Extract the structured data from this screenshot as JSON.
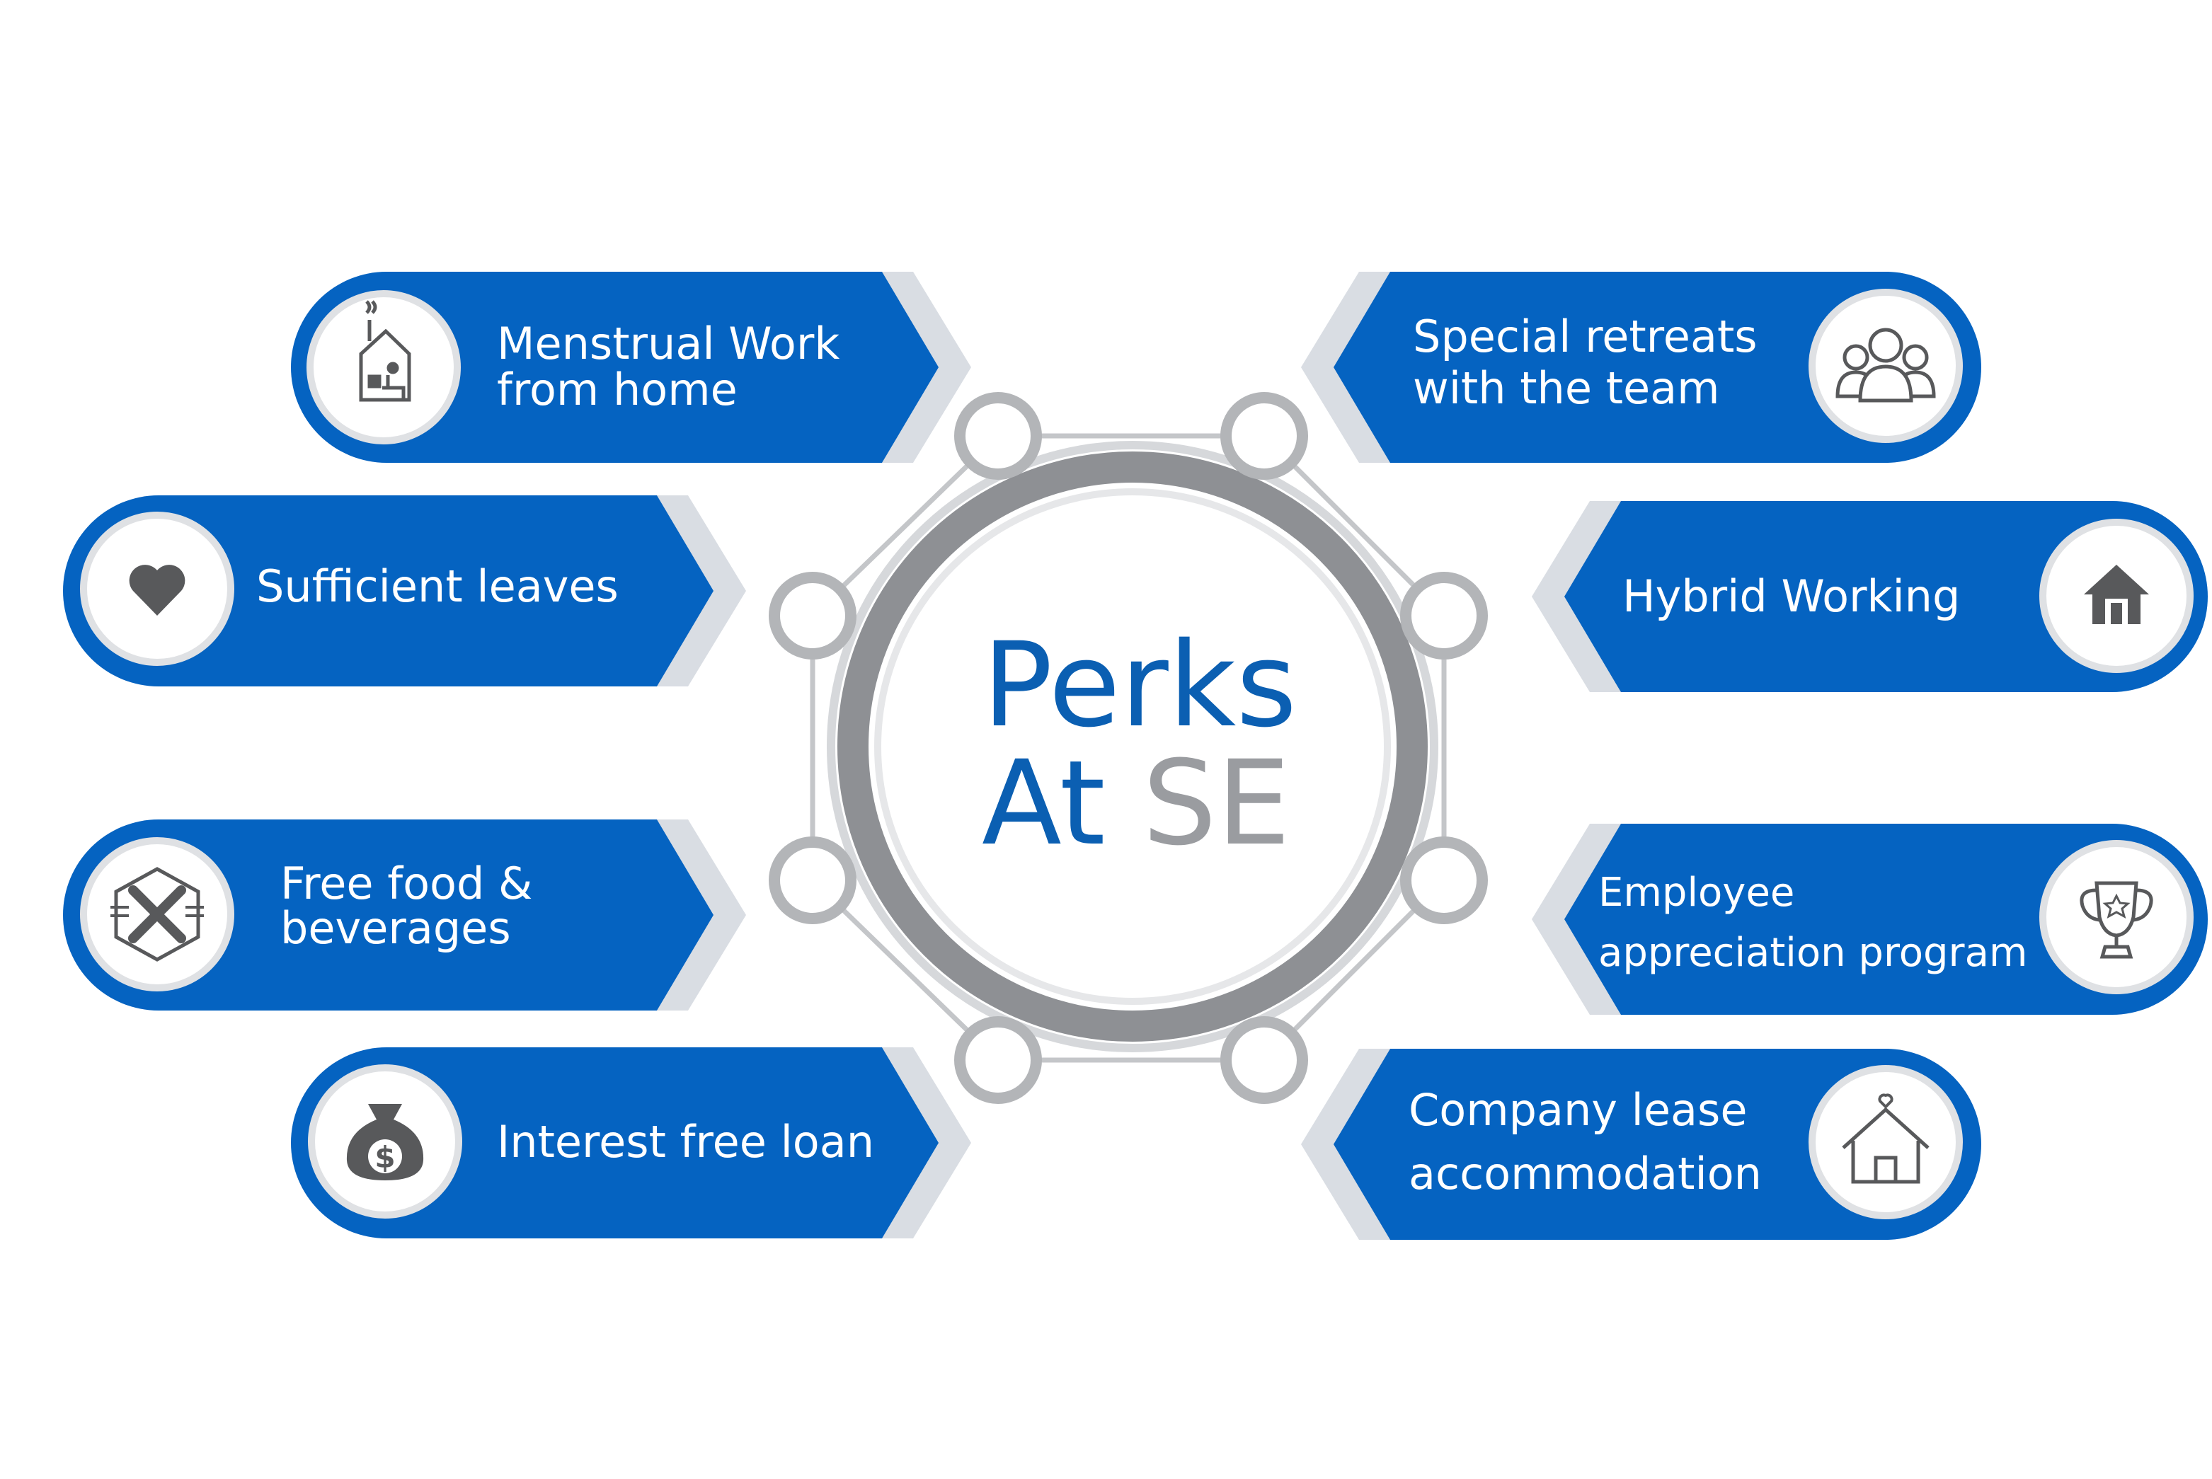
{
  "title": {
    "line1": "Perks",
    "line2_word1": "At",
    "line2_word2": "SE"
  },
  "colors": {
    "card_blue": "#0563c1",
    "card_shadow": "#d9dde3",
    "title_blue": "#0b5fb2",
    "title_grey": "#9a9ca0",
    "ring_grey": "#a7a9ac",
    "icon_grey": "#58595b"
  },
  "perks": {
    "menstrual_wfh": {
      "line1": "Menstrual Work",
      "line2": "from home",
      "icon": "home-office-icon"
    },
    "sufficient_leaves": {
      "line1": "Sufficient leaves",
      "icon": "heart-icon"
    },
    "free_food": {
      "line1": "Free food &",
      "line2": "beverages",
      "icon": "fork-knife-icon"
    },
    "interest_free_loan": {
      "line1": "Interest free loan",
      "icon": "money-bag-icon"
    },
    "special_retreats": {
      "line1": "Special retreats",
      "line2": "with the team",
      "icon": "team-icon"
    },
    "hybrid_working": {
      "line1": "Hybrid Working",
      "icon": "house-icon"
    },
    "employee_appreciation": {
      "line1": "Employee",
      "line2": "appreciation program",
      "icon": "trophy-icon"
    },
    "company_lease": {
      "line1": "Company lease",
      "line2": "accommodation",
      "icon": "house-heart-icon"
    }
  }
}
